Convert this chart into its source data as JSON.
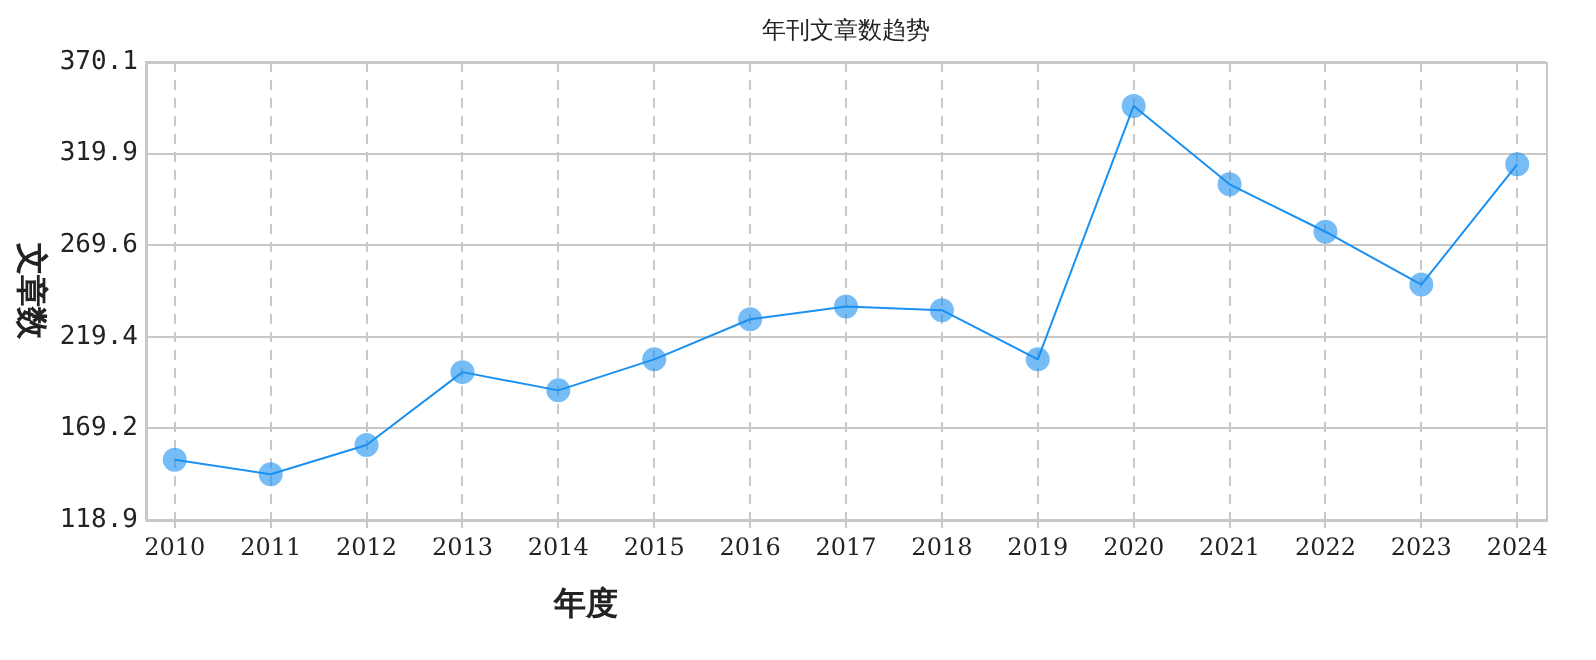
{
  "chart_data": {
    "type": "line",
    "title": "年刊文章数趋势",
    "xlabel": "年度",
    "ylabel": "文章数",
    "x": [
      2010,
      2011,
      2012,
      2013,
      2014,
      2015,
      2016,
      2017,
      2018,
      2019,
      2020,
      2021,
      2022,
      2023,
      2024
    ],
    "values": [
      152,
      144,
      160,
      200,
      190,
      207,
      229,
      236,
      234,
      207,
      346,
      303,
      277,
      248,
      314
    ],
    "color": "#1a90f0",
    "marker": "circle",
    "grid": true,
    "xlim": [
      2009.7,
      2024.3
    ],
    "xticks": [
      2010,
      2011,
      2012,
      2013,
      2014,
      2015,
      2016,
      2017,
      2018,
      2019,
      2020,
      2021,
      2022,
      2023,
      2024
    ],
    "ylim": [
      118.9,
      370.1
    ],
    "yticks": [
      118.9,
      169.2,
      219.4,
      269.6,
      319.9,
      370.1
    ]
  }
}
